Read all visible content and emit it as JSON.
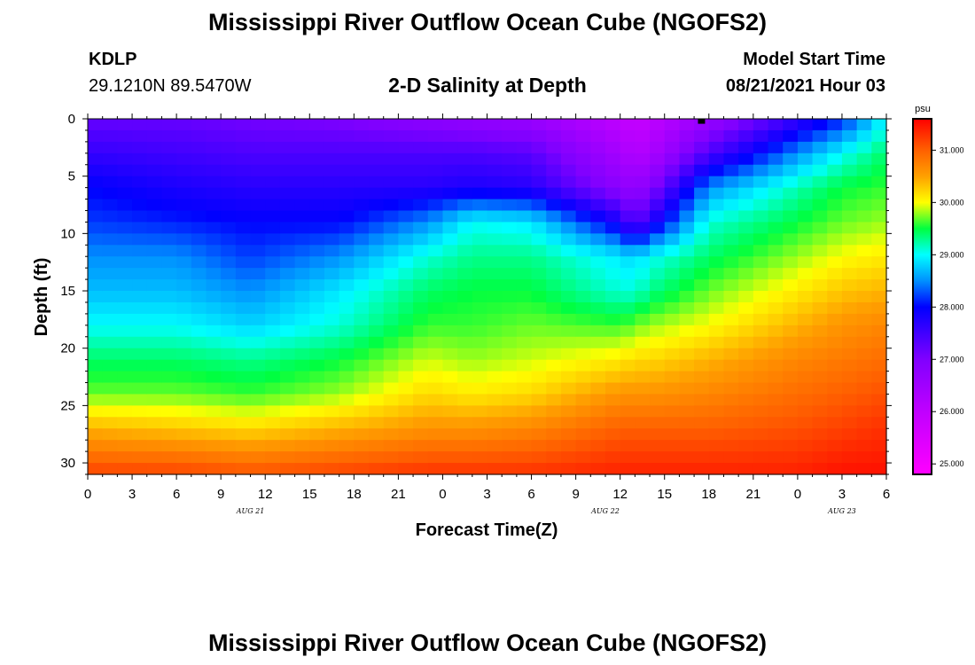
{
  "header": {
    "title": "Mississippi River Outflow Ocean Cube (NGOFS2)",
    "station_id": "KDLP",
    "coordinates": "29.1210N  89.5470W",
    "subtitle": "2-D Salinity at Depth",
    "model_start_label": "Model Start Time",
    "model_start_value": "08/21/2021 Hour 03"
  },
  "footer": {
    "title": "Mississippi River Outflow Ocean Cube (NGOFS2)"
  },
  "chart_data": {
    "type": "heatmap",
    "title": "2-D Salinity at Depth",
    "xlabel": "Forecast Time(Z)",
    "ylabel": "Depth (ft)",
    "x_tick_labels": [
      "0",
      "3",
      "6",
      "9",
      "12",
      "15",
      "18",
      "21",
      "0",
      "3",
      "6",
      "9",
      "12",
      "15",
      "18",
      "21",
      "0",
      "3",
      "6"
    ],
    "date_labels": [
      {
        "text": "AUG 21",
        "hour_index": 11
      },
      {
        "text": "AUG 22",
        "hour_index": 35
      },
      {
        "text": "AUG 23",
        "hour_index": 51
      }
    ],
    "x_range_hours": [
      0,
      54
    ],
    "y_ticks": [
      0,
      5,
      10,
      15,
      20,
      25,
      30
    ],
    "ylim": [
      0,
      31
    ],
    "y_inverted": true,
    "colorbar": {
      "unit": "psu",
      "range": [
        24.8,
        31.6
      ],
      "tick_values": [
        25.0,
        26.0,
        27.0,
        28.0,
        29.0,
        30.0,
        31.0
      ],
      "tick_labels": [
        "25.000",
        "26.000",
        "27.000",
        "28.000",
        "29.000",
        "30.000",
        "31.000"
      ],
      "stops": [
        {
          "v": 24.8,
          "color": "#ff00ff"
        },
        {
          "v": 26.0,
          "color": "#c000ff"
        },
        {
          "v": 27.0,
          "color": "#8000ff"
        },
        {
          "v": 28.0,
          "color": "#0000ff"
        },
        {
          "v": 28.5,
          "color": "#0090ff"
        },
        {
          "v": 29.0,
          "color": "#00ffff"
        },
        {
          "v": 29.5,
          "color": "#00ff40"
        },
        {
          "v": 30.0,
          "color": "#ffff00"
        },
        {
          "v": 30.5,
          "color": "#ffa000"
        },
        {
          "v": 31.0,
          "color": "#ff6000"
        },
        {
          "v": 31.6,
          "color": "#ff0000"
        }
      ]
    },
    "profile_time_hours": [
      0,
      6,
      11,
      17,
      23,
      26,
      30,
      36,
      37,
      38,
      42,
      48,
      51,
      54
    ],
    "depth_ft": [
      0,
      3,
      6,
      9,
      12,
      15,
      18,
      21,
      24,
      27,
      31
    ],
    "salinity_profiles_psu": [
      [
        27.2,
        27.6,
        28.0,
        28.2,
        28.5,
        28.7,
        29.0,
        29.4,
        29.7,
        30.4,
        31.2
      ],
      [
        27.2,
        27.5,
        27.8,
        28.1,
        28.5,
        28.7,
        29.0,
        29.4,
        29.7,
        30.3,
        31.2
      ],
      [
        27.1,
        27.4,
        27.7,
        28.0,
        28.2,
        28.5,
        28.8,
        29.3,
        29.6,
        30.2,
        31.1
      ],
      [
        27.0,
        27.4,
        27.7,
        28.0,
        28.5,
        28.9,
        29.1,
        29.5,
        29.8,
        30.4,
        31.2
      ],
      [
        26.8,
        27.4,
        27.7,
        28.5,
        29.1,
        29.4,
        29.6,
        29.9,
        30.2,
        30.6,
        31.3
      ],
      [
        26.7,
        27.4,
        27.8,
        29.0,
        29.3,
        29.5,
        29.6,
        29.8,
        30.1,
        30.6,
        31.3
      ],
      [
        26.6,
        27.3,
        27.7,
        28.9,
        29.3,
        29.5,
        29.7,
        29.9,
        30.2,
        30.7,
        31.3
      ],
      [
        26.0,
        26.4,
        26.8,
        27.8,
        28.9,
        29.1,
        29.6,
        30.1,
        30.6,
        31.0,
        31.4
      ],
      [
        25.9,
        26.2,
        26.7,
        27.2,
        28.8,
        29.1,
        29.7,
        30.2,
        30.6,
        31.0,
        31.4
      ],
      [
        26.0,
        26.3,
        26.9,
        27.7,
        29.0,
        29.3,
        29.8,
        30.2,
        30.6,
        31.0,
        31.4
      ],
      [
        26.6,
        27.4,
        28.5,
        29.1,
        29.4,
        29.7,
        30.0,
        30.4,
        30.7,
        31.0,
        31.4
      ],
      [
        27.6,
        28.5,
        29.2,
        29.5,
        29.8,
        30.1,
        30.4,
        30.7,
        30.9,
        31.1,
        31.4
      ],
      [
        28.1,
        29.0,
        29.5,
        29.7,
        30.0,
        30.3,
        30.6,
        30.8,
        31.0,
        31.2,
        31.5
      ],
      [
        29.0,
        29.4,
        29.6,
        29.8,
        30.1,
        30.4,
        30.7,
        30.9,
        31.1,
        31.3,
        31.5
      ]
    ],
    "marker": {
      "time_hours": 41.5,
      "depth_ft": 0.2
    }
  }
}
